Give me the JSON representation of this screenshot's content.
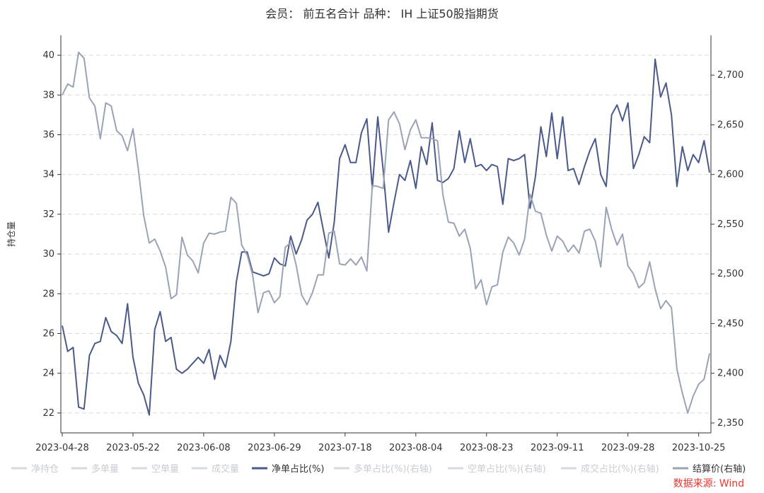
{
  "chart_data": {
    "type": "line",
    "title": "会员： 前五名合计 品种： IH 上证50股指期货",
    "ylabel": "持仓量",
    "source": "数据来源: Wind",
    "ylim": [
      21,
      41
    ],
    "y2lim": [
      2340,
      2740
    ],
    "yticks": [
      22,
      24,
      26,
      28,
      30,
      32,
      34,
      36,
      38,
      40
    ],
    "y2ticks": [
      2350,
      2400,
      2450,
      2500,
      2550,
      2600,
      2650,
      2700
    ],
    "y2tick_labels": [
      "2,350",
      "2,400",
      "2,450",
      "2,500",
      "2,550",
      "2,600",
      "2,650",
      "2,700"
    ],
    "grid": true,
    "legend_position": "bottom",
    "x": [
      "2023-04-28",
      "2023-05-04",
      "2023-05-05",
      "2023-05-08",
      "2023-05-09",
      "2023-05-10",
      "2023-05-11",
      "2023-05-12",
      "2023-05-15",
      "2023-05-16",
      "2023-05-17",
      "2023-05-18",
      "2023-05-19",
      "2023-05-22",
      "2023-05-23",
      "2023-05-24",
      "2023-05-25",
      "2023-05-26",
      "2023-05-29",
      "2023-05-30",
      "2023-05-31",
      "2023-06-01",
      "2023-06-02",
      "2023-06-05",
      "2023-06-06",
      "2023-06-07",
      "2023-06-08",
      "2023-06-09",
      "2023-06-12",
      "2023-06-13",
      "2023-06-14",
      "2023-06-15",
      "2023-06-16",
      "2023-06-19",
      "2023-06-20",
      "2023-06-21",
      "2023-06-26",
      "2023-06-27",
      "2023-06-28",
      "2023-06-29",
      "2023-06-30",
      "2023-07-03",
      "2023-07-04",
      "2023-07-05",
      "2023-07-06",
      "2023-07-07",
      "2023-07-10",
      "2023-07-11",
      "2023-07-12",
      "2023-07-13",
      "2023-07-14",
      "2023-07-17",
      "2023-07-18",
      "2023-07-19",
      "2023-07-20",
      "2023-07-21",
      "2023-07-24",
      "2023-07-25",
      "2023-07-26",
      "2023-07-27",
      "2023-07-28",
      "2023-07-31",
      "2023-08-01",
      "2023-08-02",
      "2023-08-03",
      "2023-08-04",
      "2023-08-07",
      "2023-08-08",
      "2023-08-09",
      "2023-08-10",
      "2023-08-11",
      "2023-08-14",
      "2023-08-15",
      "2023-08-16",
      "2023-08-17",
      "2023-08-18",
      "2023-08-21",
      "2023-08-22",
      "2023-08-23",
      "2023-08-24",
      "2023-08-25",
      "2023-08-28",
      "2023-08-29",
      "2023-08-30",
      "2023-08-31",
      "2023-09-01",
      "2023-09-04",
      "2023-09-05",
      "2023-09-06",
      "2023-09-07",
      "2023-09-08",
      "2023-09-11",
      "2023-09-12",
      "2023-09-13",
      "2023-09-14",
      "2023-09-15",
      "2023-09-18",
      "2023-09-19",
      "2023-09-20",
      "2023-09-21",
      "2023-09-22",
      "2023-09-25",
      "2023-09-26",
      "2023-09-27",
      "2023-09-28",
      "2023-10-09",
      "2023-10-10",
      "2023-10-11",
      "2023-10-12",
      "2023-10-13",
      "2023-10-16",
      "2023-10-17",
      "2023-10-18",
      "2023-10-19",
      "2023-10-20",
      "2023-10-23",
      "2023-10-24",
      "2023-10-25",
      "2023-10-26",
      "2023-10-27"
    ],
    "xtick_labels": [
      "2023-04-28",
      "2023-05-22",
      "2023-06-08",
      "2023-06-29",
      "2023-07-18",
      "2023-08-04",
      "2023-08-23",
      "2023-09-11",
      "2023-09-28",
      "2023-10-25"
    ],
    "legend": [
      {
        "name": "净持仓",
        "color": "#d6dae0",
        "style": "line"
      },
      {
        "name": "多单量",
        "color": "#d6dae0",
        "style": "line"
      },
      {
        "name": "空单量",
        "color": "#d6dae0",
        "style": "line"
      },
      {
        "name": "成交量",
        "color": "#d6dae0",
        "style": "line"
      },
      {
        "name": "净单占比(%)",
        "color": "#4a5a8a",
        "style": "line"
      },
      {
        "name": "多单占比(%)(右轴)",
        "color": "#d6dae0",
        "style": "line"
      },
      {
        "name": "空单占比(%)(右轴)",
        "color": "#d6dae0",
        "style": "line"
      },
      {
        "name": "成交占比(%)(右轴)",
        "color": "#d6dae0",
        "style": "line"
      },
      {
        "name": "结算价(右轴)",
        "color": "#9aa3b5",
        "style": "line"
      }
    ],
    "series": [
      {
        "name": "净单占比(%)",
        "axis": "left",
        "color": "#4a5a8a",
        "values": [
          26.4,
          25.1,
          25.3,
          22.3,
          22.2,
          24.9,
          25.5,
          25.6,
          26.8,
          26.1,
          25.9,
          25.5,
          27.5,
          24.8,
          23.5,
          22.9,
          21.9,
          26.2,
          27.1,
          25.6,
          25.8,
          24.2,
          24.0,
          24.2,
          24.5,
          24.8,
          24.5,
          25.2,
          23.7,
          24.9,
          24.3,
          25.6,
          28.6,
          30.1,
          30.1,
          29.1,
          29.0,
          28.9,
          29.0,
          29.8,
          29.5,
          29.4,
          30.9,
          30.0,
          30.7,
          31.7,
          32.0,
          32.6,
          31.2,
          29.8,
          31.6,
          34.8,
          35.5,
          34.6,
          34.6,
          36.1,
          36.8,
          33.3,
          36.9,
          34.2,
          31.1,
          32.6,
          34.0,
          33.7,
          34.7,
          33.3,
          35.4,
          34.5,
          36.6,
          33.7,
          33.6,
          33.8,
          34.3,
          36.2,
          34.6,
          35.8,
          34.4,
          34.5,
          34.2,
          34.5,
          34.4,
          32.5,
          34.8,
          34.7,
          34.8,
          35.0,
          32.3,
          33.9,
          36.4,
          34.9,
          37.1,
          34.8,
          36.9,
          34.2,
          34.3,
          33.5,
          34.4,
          35.2,
          35.8,
          34.0,
          33.4,
          37.0,
          37.5,
          36.7,
          37.6,
          34.3,
          35.0,
          35.9,
          35.6,
          39.8,
          37.9,
          38.6,
          37.0,
          33.4,
          35.4,
          34.2,
          35.0,
          34.6,
          35.7,
          34.1
        ]
      },
      {
        "name": "结算价(右轴)",
        "axis": "right",
        "color": "#9aa3b5",
        "values": [
          2680,
          2691,
          2688,
          2723,
          2717,
          2677,
          2669,
          2636,
          2672,
          2669,
          2644,
          2639,
          2624,
          2646,
          2605,
          2558,
          2531,
          2535,
          2523,
          2507,
          2475,
          2479,
          2537,
          2519,
          2513,
          2501,
          2531,
          2541,
          2540,
          2542,
          2543,
          2577,
          2571,
          2529,
          2519,
          2499,
          2461,
          2481,
          2483,
          2471,
          2477,
          2527,
          2531,
          2509,
          2479,
          2469,
          2481,
          2499,
          2499,
          2541,
          2543,
          2510,
          2509,
          2515,
          2509,
          2517,
          2503,
          2589,
          2588,
          2586,
          2655,
          2663,
          2651,
          2625,
          2645,
          2655,
          2637,
          2637,
          2636,
          2634,
          2579,
          2552,
          2551,
          2538,
          2545,
          2526,
          2485,
          2494,
          2469,
          2487,
          2489,
          2522,
          2537,
          2531,
          2519,
          2535,
          2580,
          2563,
          2561,
          2539,
          2523,
          2538,
          2533,
          2522,
          2529,
          2521,
          2543,
          2545,
          2533,
          2507,
          2567,
          2545,
          2529,
          2540,
          2508,
          2500,
          2486,
          2491,
          2512,
          2485,
          2465,
          2473,
          2466,
          2404,
          2380,
          2360,
          2377,
          2389,
          2394,
          2420
        ]
      }
    ]
  }
}
